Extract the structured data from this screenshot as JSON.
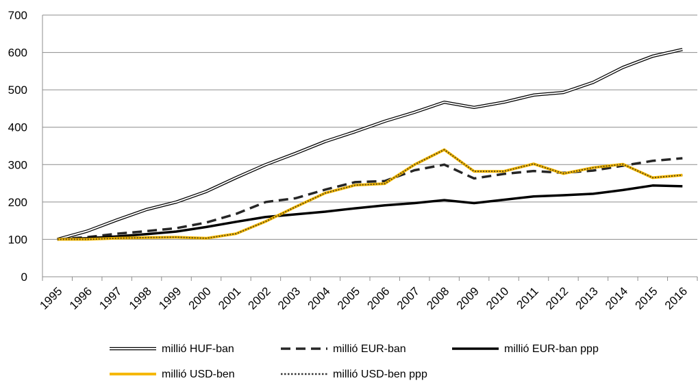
{
  "chart_data": {
    "type": "line",
    "title": "",
    "xlabel": "",
    "ylabel": "",
    "categories": [
      "1995",
      "1996",
      "1997",
      "1998",
      "1999",
      "2000",
      "2001",
      "2002",
      "2003",
      "2004",
      "2005",
      "2006",
      "2007",
      "2008",
      "2009",
      "2010",
      "2011",
      "2012",
      "2013",
      "2014",
      "2015",
      "2016"
    ],
    "ylim": [
      0,
      700
    ],
    "yticks": [
      0,
      100,
      200,
      300,
      400,
      500,
      600,
      700
    ],
    "grid": true,
    "legend_position": "bottom",
    "series": [
      {
        "name": "millió HUF-ban",
        "color": "#000000",
        "style": "double",
        "values": [
          100,
          122,
          152,
          180,
          200,
          228,
          265,
          300,
          330,
          362,
          388,
          416,
          440,
          467,
          453,
          467,
          486,
          493,
          520,
          560,
          590,
          608
        ]
      },
      {
        "name": "millió EUR-ban",
        "color": "#262626",
        "style": "dashed",
        "values": [
          100,
          106,
          115,
          122,
          130,
          145,
          168,
          200,
          210,
          233,
          253,
          256,
          285,
          300,
          263,
          275,
          283,
          278,
          284,
          297,
          310,
          317
        ]
      },
      {
        "name": "millió EUR-ban ppp",
        "color": "#000000",
        "style": "solid-thick",
        "values": [
          100,
          103,
          108,
          114,
          121,
          133,
          147,
          160,
          167,
          174,
          183,
          191,
          197,
          205,
          197,
          206,
          215,
          218,
          222,
          232,
          244,
          242
        ]
      },
      {
        "name": "millió USD-ben",
        "color": "#F5B800",
        "style": "solid",
        "values": [
          100,
          100,
          103,
          105,
          106,
          103,
          115,
          148,
          187,
          224,
          245,
          249,
          300,
          340,
          282,
          282,
          302,
          276,
          292,
          301,
          265,
          272
        ]
      },
      {
        "name": "millió USD-ben ppp",
        "color": "#5a4a1a",
        "style": "dotted",
        "values": [
          100,
          100,
          103,
          105,
          106,
          103,
          115,
          148,
          187,
          224,
          245,
          249,
          300,
          340,
          282,
          282,
          302,
          276,
          292,
          301,
          265,
          272
        ]
      }
    ]
  }
}
